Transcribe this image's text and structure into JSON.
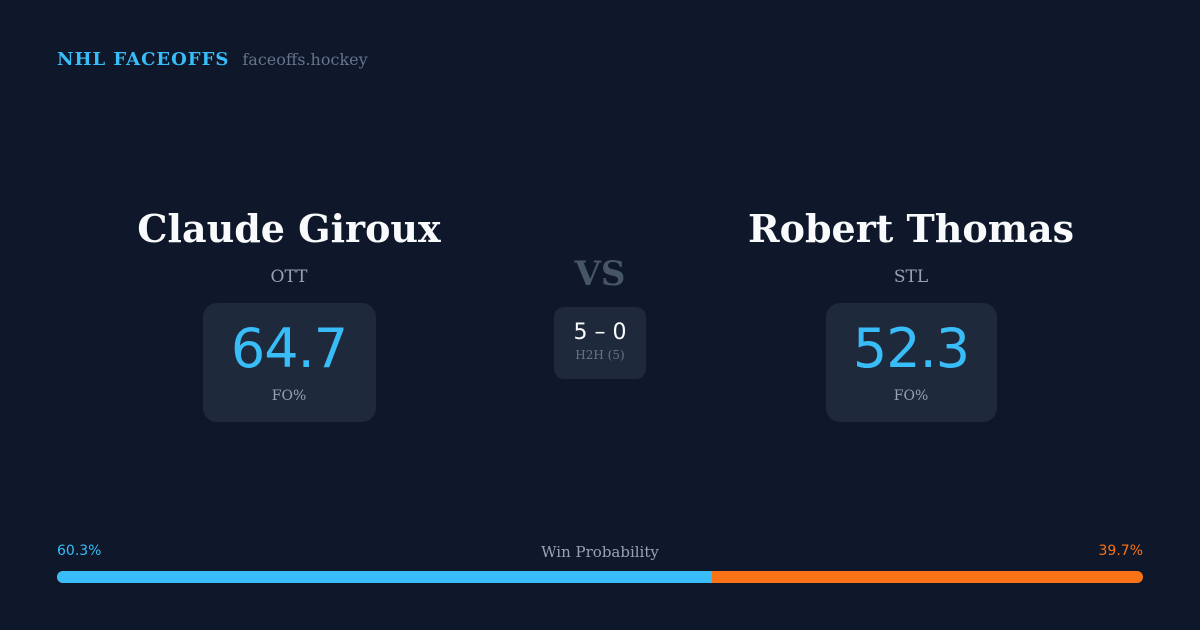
{
  "brand": {
    "title": "NHL FACEOFFS",
    "domain": "faceoffs.hockey"
  },
  "players": [
    {
      "name": "Claude Giroux",
      "team": "OTT",
      "fo_pct": "64.7",
      "fo_label": "FO%"
    },
    {
      "name": "Robert Thomas",
      "team": "STL",
      "fo_pct": "52.3",
      "fo_label": "FO%"
    }
  ],
  "vs": "VS",
  "h2h": {
    "score": "5 – 0",
    "label": "H2H (5)"
  },
  "win_probability": {
    "label": "Win Probability",
    "left": "60.3%",
    "right": "39.7%",
    "left_value": 60.3,
    "colors": {
      "left": "#38bdf8",
      "right": "#f97316"
    }
  }
}
